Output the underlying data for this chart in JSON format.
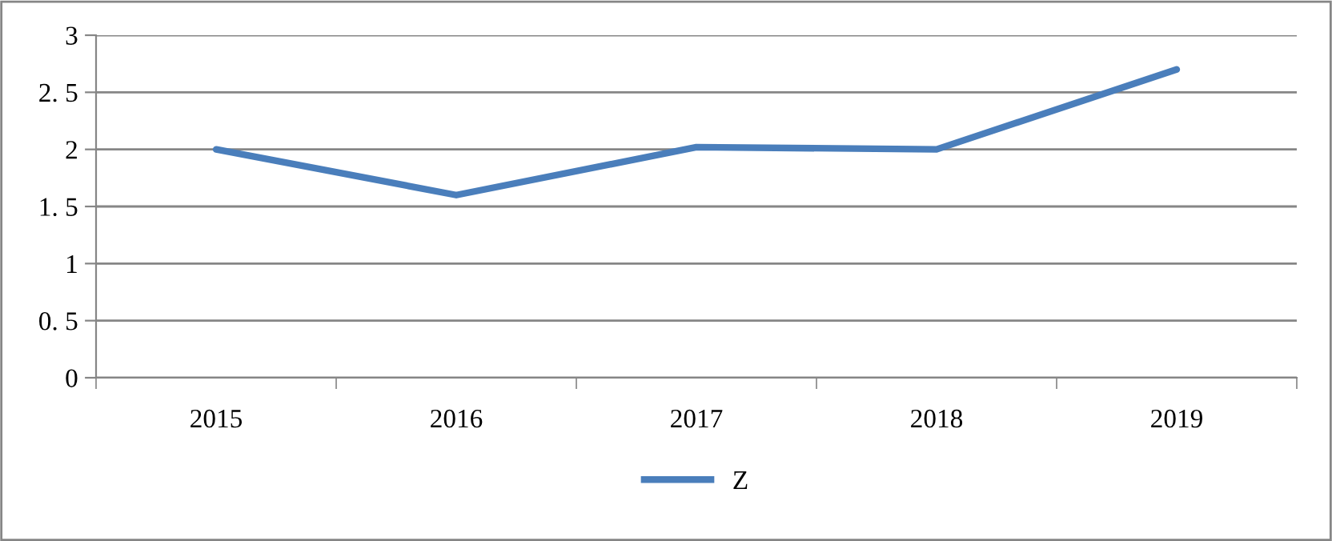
{
  "chart_data": {
    "type": "line",
    "categories": [
      "2015",
      "2016",
      "2017",
      "2018",
      "2019"
    ],
    "series": [
      {
        "name": "Z",
        "color": "#4a7ebb",
        "values": [
          2.0,
          1.6,
          2.02,
          2.0,
          2.7
        ]
      }
    ],
    "ylim": [
      0,
      3
    ],
    "yticks": [
      0,
      {
        "value": 0.5,
        "label": "0. 5"
      },
      1,
      {
        "value": 1.5,
        "label": "1. 5"
      },
      2,
      {
        "value": 2.5,
        "label": "2. 5"
      },
      3
    ],
    "grid": "y",
    "legend": "bottom",
    "marker": "none",
    "line_style": "solid"
  }
}
